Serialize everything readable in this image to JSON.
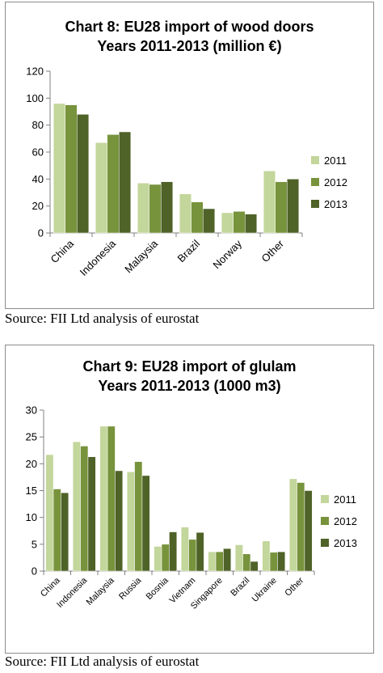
{
  "colors": {
    "s2011": "#c3d69b",
    "s2012": "#77933c",
    "s2013": "#4f6228",
    "axis": "#808080"
  },
  "source_label": "Source: FII Ltd analysis of eurostat",
  "chart_data": [
    {
      "type": "bar",
      "title_line1": "Chart 8: EU28 import of wood doors",
      "title_line2": "Years 2011-2013 (million €)",
      "categories": [
        "China",
        "Indonesia",
        "Malaysia",
        "Brazil",
        "Norway",
        "Other"
      ],
      "series": [
        {
          "name": "2011",
          "values": [
            96,
            67,
            37,
            29,
            15,
            46
          ]
        },
        {
          "name": "2012",
          "values": [
            95,
            73,
            36,
            23,
            16,
            38
          ]
        },
        {
          "name": "2013",
          "values": [
            88,
            75,
            38,
            18,
            14,
            40
          ]
        }
      ],
      "ylim": [
        0,
        120
      ],
      "yticks": [
        "0",
        "20",
        "40",
        "60",
        "80",
        "100",
        "120"
      ],
      "legend_position": "right",
      "grid": false
    },
    {
      "type": "bar",
      "title_line1": "Chart 9: EU28 import of glulam",
      "title_line2": "Years 2011-2013 (1000 m3)",
      "categories": [
        "China",
        "Indonesia",
        "Malaysia",
        "Russia",
        "Bosnia",
        "Vietnam",
        "Singapore",
        "Brazil",
        "Ukraine",
        "Other"
      ],
      "series": [
        {
          "name": "2011",
          "values": [
            21.7,
            24.1,
            27.0,
            18.5,
            4.6,
            8.2,
            3.6,
            4.9,
            5.6,
            17.2
          ]
        },
        {
          "name": "2012",
          "values": [
            15.3,
            23.3,
            27.0,
            20.4,
            5.0,
            5.9,
            3.6,
            3.2,
            3.5,
            16.5
          ]
        },
        {
          "name": "2013",
          "values": [
            14.6,
            21.3,
            18.7,
            17.8,
            7.3,
            7.2,
            4.2,
            1.8,
            3.6,
            15.0
          ]
        }
      ],
      "ylim": [
        0,
        30
      ],
      "yticks": [
        "0",
        "5",
        "10",
        "15",
        "20",
        "25",
        "30"
      ],
      "legend_position": "right",
      "grid": false
    }
  ]
}
